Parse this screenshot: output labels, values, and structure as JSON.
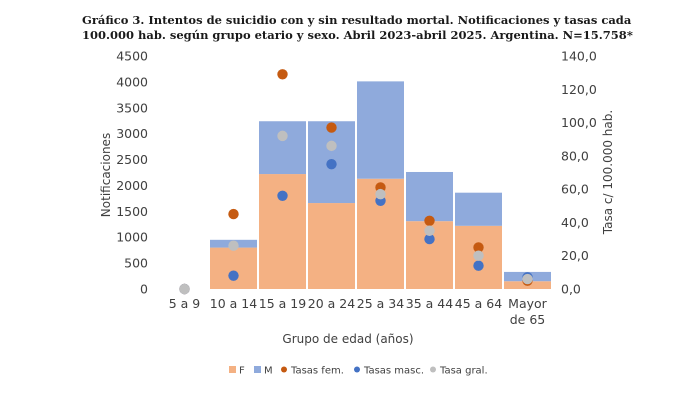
{
  "chart_data": {
    "type": "bar",
    "title": "Gráfico 3. Intentos de suicidio con y sin resultado mortal. Notificaciones y tasas cada 100.000 hab. según grupo etario y sexo. Abril 2023-abril 2025. Argentina. N=15.758*",
    "xlabel": "Grupo de edad (años)",
    "ylabel": "Notificaciones",
    "y2label": "Tasa c/ 100.000 hab.",
    "ylim": [
      0,
      4500
    ],
    "y2lim": [
      0,
      140
    ],
    "yticks": [
      "0",
      "500",
      "1000",
      "1500",
      "2000",
      "2500",
      "3000",
      "3500",
      "4000",
      "4500"
    ],
    "y2ticks": [
      "0,0",
      "20,0",
      "40,0",
      "60,0",
      "80,0",
      "100,0",
      "120,0",
      "140,0"
    ],
    "categories": [
      [
        "5 a 9"
      ],
      [
        "10 a 14"
      ],
      [
        "15 a 19"
      ],
      [
        "20 a 24"
      ],
      [
        "25 a 34"
      ],
      [
        "35 a 44"
      ],
      [
        "45 a 64"
      ],
      [
        "Mayor",
        "de 65"
      ]
    ],
    "bar_series": [
      {
        "name": "F",
        "color": "#F4B183",
        "values": [
          0,
          800,
          2220,
          1660,
          2130,
          1310,
          1220,
          150
        ]
      },
      {
        "name": "M",
        "color": "#8FAADC",
        "values": [
          0,
          150,
          1020,
          1580,
          1880,
          950,
          640,
          180
        ]
      }
    ],
    "rate_series": [
      {
        "name": "Tasas fem.",
        "color": "#C55A11",
        "values": [
          0,
          45,
          129,
          97,
          61,
          41,
          25,
          5
        ]
      },
      {
        "name": "Tasas masc.",
        "color": "#4472C4",
        "values": [
          0,
          8,
          56,
          75,
          53,
          30,
          14,
          7
        ]
      },
      {
        "name": "Tasa gral.",
        "color": "#BFBFBF",
        "values": [
          0,
          26,
          92,
          86,
          57,
          35,
          20,
          6
        ]
      }
    ],
    "legend_position": "bottom",
    "stacked": true
  }
}
